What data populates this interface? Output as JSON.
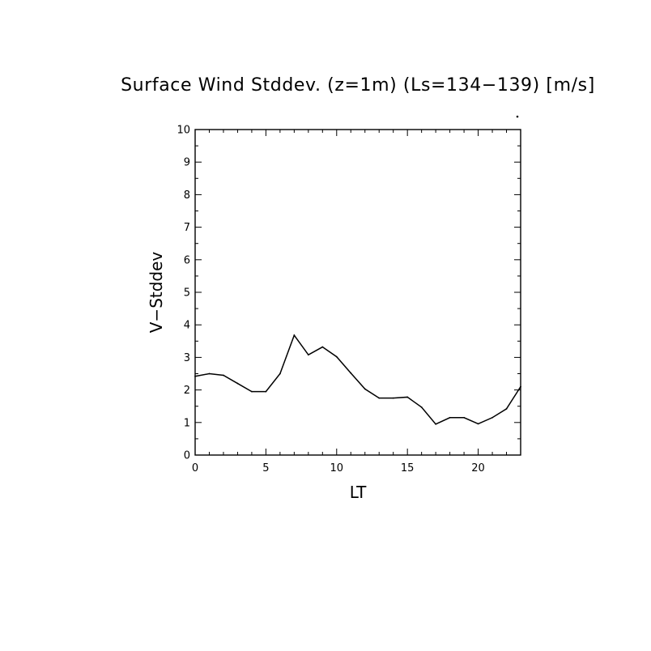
{
  "chart_data": {
    "type": "line",
    "title": "Surface Wind Stddev. (z=1m) (Ls=134−139) [m/s]",
    "xlabel": "LT",
    "ylabel": "V−Stddev",
    "xlim": [
      0,
      23
    ],
    "ylim": [
      0,
      10
    ],
    "x_ticks": [
      0,
      5,
      10,
      15,
      20
    ],
    "y_ticks": [
      0,
      1,
      2,
      3,
      4,
      5,
      6,
      7,
      8,
      9,
      10
    ],
    "grid": false,
    "series": [
      {
        "x": [
          0,
          1,
          2,
          3,
          4,
          5,
          6,
          7,
          8,
          9,
          10,
          11,
          12,
          13,
          14,
          15,
          16,
          17,
          18,
          19,
          20,
          21,
          22,
          23
        ],
        "values": [
          2.42,
          2.5,
          2.45,
          2.2,
          1.95,
          1.95,
          2.5,
          3.68,
          3.08,
          3.32,
          3.02,
          2.52,
          2.03,
          1.75,
          1.75,
          1.78,
          1.47,
          0.95,
          1.15,
          1.15,
          0.96,
          1.15,
          1.42,
          2.1
        ]
      }
    ]
  }
}
